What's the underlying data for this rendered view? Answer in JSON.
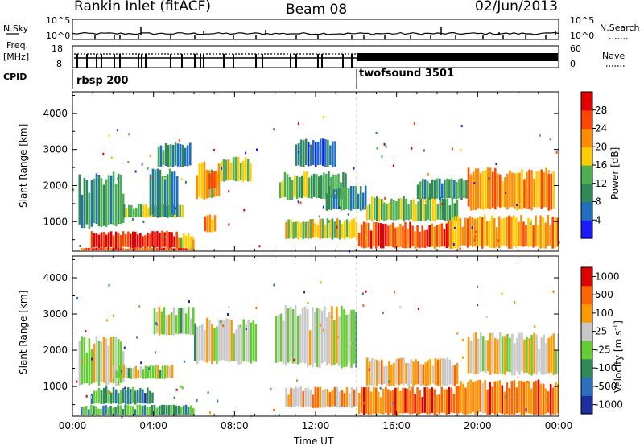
{
  "header": {
    "station": "Rankin Inlet (fitACF)",
    "beam": "Beam 08",
    "date": "02/Jun/2013"
  },
  "strip": {
    "nsky_label": "N.Sky",
    "nsearch_label": "N.Search",
    "nsky_ticks": [
      "10^5",
      "10^0"
    ],
    "nsearch_ticks": [
      "10^5",
      "10^0"
    ],
    "freq_label_1": "Freq.",
    "freq_label_2": "[MHz]",
    "freq_ticks": [
      "18",
      "8"
    ],
    "nave_label": "Nave",
    "nave_ticks": [
      "60",
      "0"
    ],
    "cpid_label": "CPID",
    "cpid_segments": [
      {
        "name": "rbsp 200",
        "start_hour": 0
      },
      {
        "name": "twofsound 3501",
        "start_hour": 14
      }
    ]
  },
  "chart_data": [
    {
      "type": "heatmap",
      "parameter": "Power",
      "ylabel": "Slant Range [km]",
      "xlabel": "",
      "x_range_hours": [
        0,
        24
      ],
      "ylim": [
        180,
        4600
      ],
      "y_ticks": [
        1000,
        2000,
        3000,
        4000
      ],
      "colorbar": {
        "label": "Power [dB]",
        "range": [
          0,
          32
        ],
        "tick_values": [
          4,
          8,
          12,
          16,
          20,
          24,
          28
        ],
        "tick_labels": [
          "4",
          "8",
          "12",
          "16",
          "20",
          "24",
          "28"
        ],
        "colors": [
          "#1a1aff",
          "#1f6fbf",
          "#2e8b57",
          "#4caf50",
          "#ffcc00",
          "#ff8c00",
          "#ff4500",
          "#e00000"
        ]
      },
      "regions": [
        {
          "t0": 0.9,
          "t1": 5.2,
          "r0": 250,
          "r1": 750,
          "level": 0.93
        },
        {
          "t0": 0.4,
          "t1": 6.0,
          "r0": 200,
          "r1": 280,
          "level": 0.8
        },
        {
          "t0": 5.2,
          "t1": 6.0,
          "r0": 250,
          "r1": 700,
          "level": 0.55
        },
        {
          "t0": 0.3,
          "t1": 2.5,
          "r0": 800,
          "r1": 2400,
          "level": 0.35
        },
        {
          "t0": 2.5,
          "t1": 5.5,
          "r0": 1100,
          "r1": 1500,
          "level": 0.45
        },
        {
          "t0": 6.1,
          "t1": 7.3,
          "r0": 1600,
          "r1": 2700,
          "level": 0.58
        },
        {
          "t0": 6.6,
          "t1": 7.2,
          "r0": 1900,
          "r1": 2400,
          "level": 0.82
        },
        {
          "t0": 7.3,
          "t1": 8.8,
          "r0": 2100,
          "r1": 2800,
          "level": 0.55
        },
        {
          "t0": 6.5,
          "t1": 7.0,
          "r0": 700,
          "r1": 1200,
          "level": 0.72
        },
        {
          "t0": 3.8,
          "t1": 5.2,
          "r0": 1100,
          "r1": 2500,
          "level": 0.3
        },
        {
          "t0": 4.2,
          "t1": 5.8,
          "r0": 2500,
          "r1": 3200,
          "level": 0.28
        },
        {
          "t0": 10.2,
          "t1": 13.5,
          "r0": 1600,
          "r1": 2400,
          "level": 0.4
        },
        {
          "t0": 11.0,
          "t1": 13.0,
          "r0": 2500,
          "r1": 3300,
          "level": 0.22
        },
        {
          "t0": 10.5,
          "t1": 14.0,
          "r0": 500,
          "r1": 1100,
          "level": 0.5
        },
        {
          "t0": 12.5,
          "t1": 14.5,
          "r0": 1300,
          "r1": 2000,
          "level": 0.3
        },
        {
          "t0": 14.1,
          "t1": 18.5,
          "r0": 250,
          "r1": 1000,
          "level": 0.78
        },
        {
          "t0": 14.5,
          "t1": 19.0,
          "r0": 1000,
          "r1": 1700,
          "level": 0.45
        },
        {
          "t0": 18.5,
          "t1": 24.0,
          "r0": 250,
          "r1": 1200,
          "level": 0.65
        },
        {
          "t0": 19.5,
          "t1": 23.8,
          "r0": 1300,
          "r1": 2500,
          "level": 0.72
        },
        {
          "t0": 17.0,
          "t1": 19.5,
          "r0": 1600,
          "r1": 2200,
          "level": 0.35
        }
      ]
    },
    {
      "type": "heatmap",
      "parameter": "Velocity",
      "ylabel": "Slant Range [km]",
      "xlabel": "Time UT",
      "x_range_hours": [
        0,
        24
      ],
      "x_tick_labels": [
        "00:00",
        "04:00",
        "08:00",
        "12:00",
        "16:00",
        "20:00",
        "00:00"
      ],
      "ylim": [
        180,
        4600
      ],
      "y_ticks": [
        1000,
        2000,
        3000,
        4000
      ],
      "colorbar": {
        "label": "Velocity [m s",
        "label_superscript": "-1",
        "label_end": "]",
        "tick_labels": [
          "1000",
          "500",
          "100",
          "25",
          "-25",
          "-100",
          "-500",
          "-1000"
        ],
        "colors": [
          "#1a2fa0",
          "#2a70c0",
          "#2e8b57",
          "#66cc33",
          "#c8c8c8",
          "#ff9900",
          "#ff6600",
          "#e00000"
        ]
      },
      "regions": [
        {
          "t0": 0.4,
          "t1": 6.0,
          "r0": 200,
          "r1": 500,
          "level": 0.35
        },
        {
          "t0": 0.9,
          "t1": 4.0,
          "r0": 500,
          "r1": 1000,
          "level": 0.25
        },
        {
          "t0": 0.3,
          "t1": 2.5,
          "r0": 1000,
          "r1": 2400,
          "level": 0.5
        },
        {
          "t0": 2.0,
          "t1": 5.0,
          "r0": 1200,
          "r1": 1600,
          "level": 0.5
        },
        {
          "t0": 6.0,
          "t1": 9.0,
          "r0": 1600,
          "r1": 2900,
          "level": 0.5
        },
        {
          "t0": 4.0,
          "t1": 6.0,
          "r0": 2400,
          "r1": 3200,
          "level": 0.5
        },
        {
          "t0": 10.0,
          "t1": 14.0,
          "r0": 1500,
          "r1": 3300,
          "level": 0.5
        },
        {
          "t0": 10.5,
          "t1": 14.0,
          "r0": 400,
          "r1": 1000,
          "level": 0.68
        },
        {
          "t0": 14.1,
          "t1": 19.0,
          "r0": 200,
          "r1": 1000,
          "level": 0.82
        },
        {
          "t0": 14.5,
          "t1": 19.0,
          "r0": 1000,
          "r1": 1800,
          "level": 0.65
        },
        {
          "t0": 19.0,
          "t1": 24.0,
          "r0": 200,
          "r1": 1200,
          "level": 0.75
        },
        {
          "t0": 19.5,
          "t1": 24.0,
          "r0": 1300,
          "r1": 2500,
          "level": 0.6
        }
      ]
    }
  ]
}
